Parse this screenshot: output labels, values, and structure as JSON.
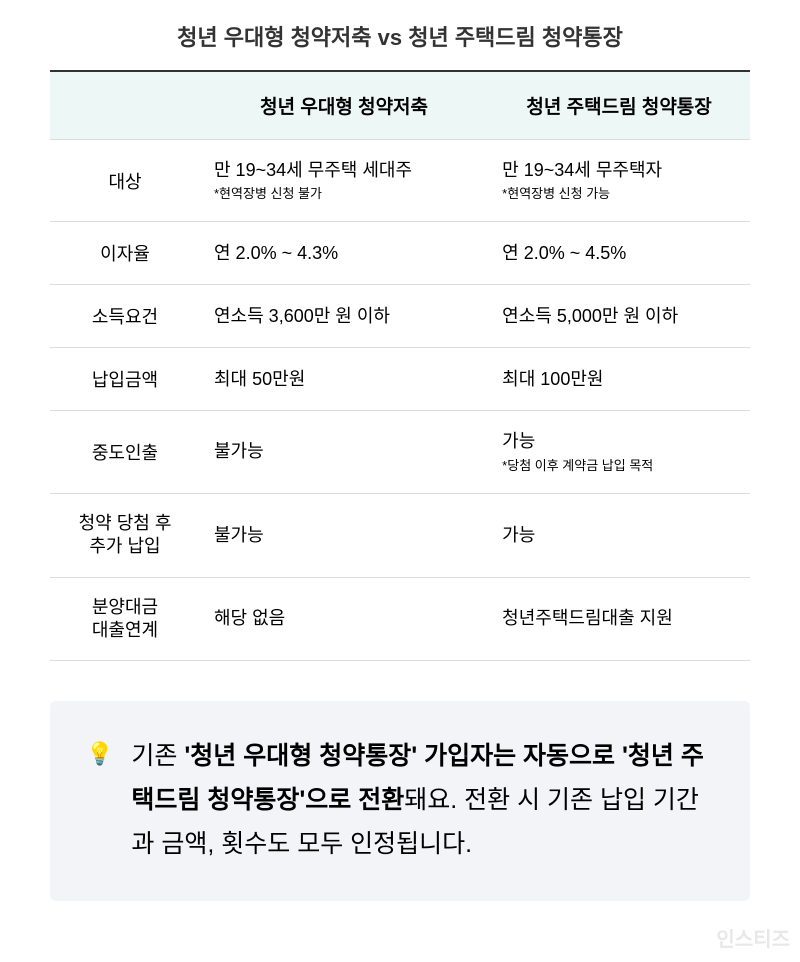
{
  "title": "청년 우대형 청약저축 vs 청년 주택드림 청약통장",
  "table": {
    "headers": {
      "col0": "",
      "col1": "청년 우대형 청약저축",
      "col2": "청년 주택드림 청약통장"
    },
    "rows": [
      {
        "label": "대상",
        "col1_main": "만 19~34세 무주택 세대주",
        "col1_sub": "*현역장병 신청 불가",
        "col2_main": "만 19~34세 무주택자",
        "col2_sub": "*현역장병 신청 가능"
      },
      {
        "label": "이자율",
        "col1_main": "연 2.0% ~ 4.3%",
        "col1_sub": "",
        "col2_main": "연 2.0% ~ 4.5%",
        "col2_sub": ""
      },
      {
        "label": "소득요건",
        "col1_main": "연소득 3,600만 원 이하",
        "col1_sub": "",
        "col2_main": "연소득 5,000만 원 이하",
        "col2_sub": ""
      },
      {
        "label": "납입금액",
        "col1_main": "최대 50만원",
        "col1_sub": "",
        "col2_main": "최대 100만원",
        "col2_sub": ""
      },
      {
        "label": "중도인출",
        "col1_main": "불가능",
        "col1_sub": "",
        "col2_main": "가능",
        "col2_sub": "*당첨 이후 계약금 납입 목적"
      },
      {
        "label": "청약 당첨 후\n추가 납입",
        "col1_main": "불가능",
        "col1_sub": "",
        "col2_main": "가능",
        "col2_sub": ""
      },
      {
        "label": "분양대금\n대출연계",
        "col1_main": "해당 없음",
        "col1_sub": "",
        "col2_main": "청년주택드림대출 지원",
        "col2_sub": ""
      }
    ]
  },
  "callout": {
    "icon": "💡",
    "text_before": "기존 ",
    "text_bold": "'청년 우대형 청약통장' 가입자는 자동으로 '청년 주택드림 청약통장'으로 전환",
    "text_after": "돼요. 전환 시 기존 납입 기간과 금액, 횟수도 모두 인정됩니다."
  },
  "watermark": "인스티즈",
  "colors": {
    "header_bg": "#edf7f5",
    "border_top": "#333333",
    "border_row": "#dcdcdc",
    "callout_bg": "#f2f4f7",
    "text": "#000000",
    "watermark": "#e8e8e8"
  }
}
